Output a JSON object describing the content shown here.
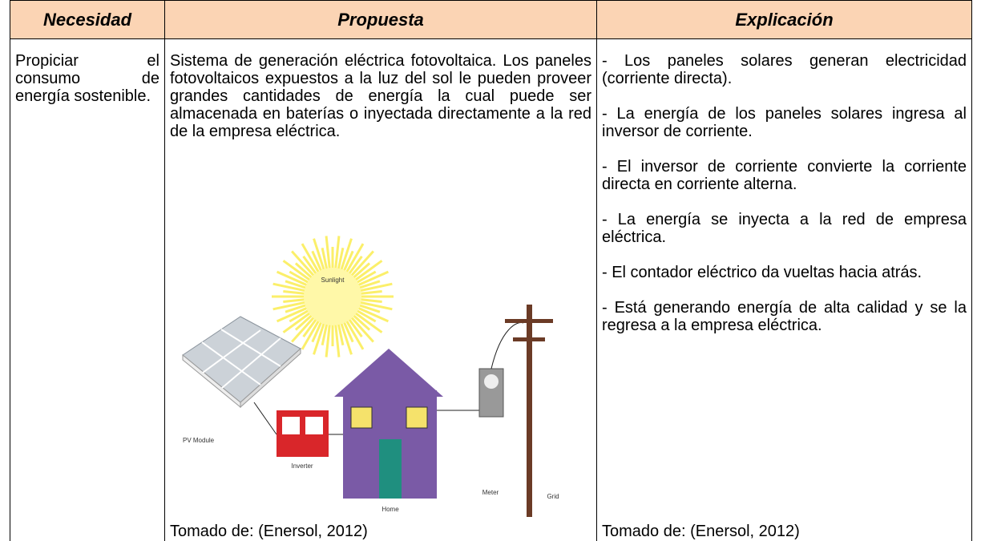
{
  "table": {
    "header": [
      "Necesidad",
      "Propuesta",
      "Explicación"
    ],
    "row": {
      "need": "Propiciar el consumo de energía sostenible.",
      "proposal": {
        "text": "Sistema de generación eléctrica fotovoltaica. Los paneles fotovoltaicos expuestos a la luz del sol le pueden proveer grandes cantidades de energía la cual puede ser almacenada en baterías o inyectada directamente a la red de la empresa eléctrica.",
        "figure": {
          "sun": "Sunlight",
          "panel": "PV Module",
          "inverter": "Inverter",
          "home": "Home",
          "meter": "Meter",
          "grid": "Grid"
        },
        "source": "Tomado de: (Enersol, 2012)"
      },
      "explanation": {
        "items": [
          "- Los paneles solares generan electricidad (corriente directa).",
          "- La energía de los paneles solares ingresa al inversor de corriente.",
          "- El inversor de corriente convierte la corriente directa en corriente alterna.",
          "- La energía se inyecta a la red de empresa eléctrica.",
          "- El contador eléctrico da vueltas hacia atrás.",
          "- Está generando energía de alta calidad y se la regresa a la empresa eléctrica."
        ],
        "source": "Tomado de: (Enersol, 2012)"
      }
    }
  }
}
